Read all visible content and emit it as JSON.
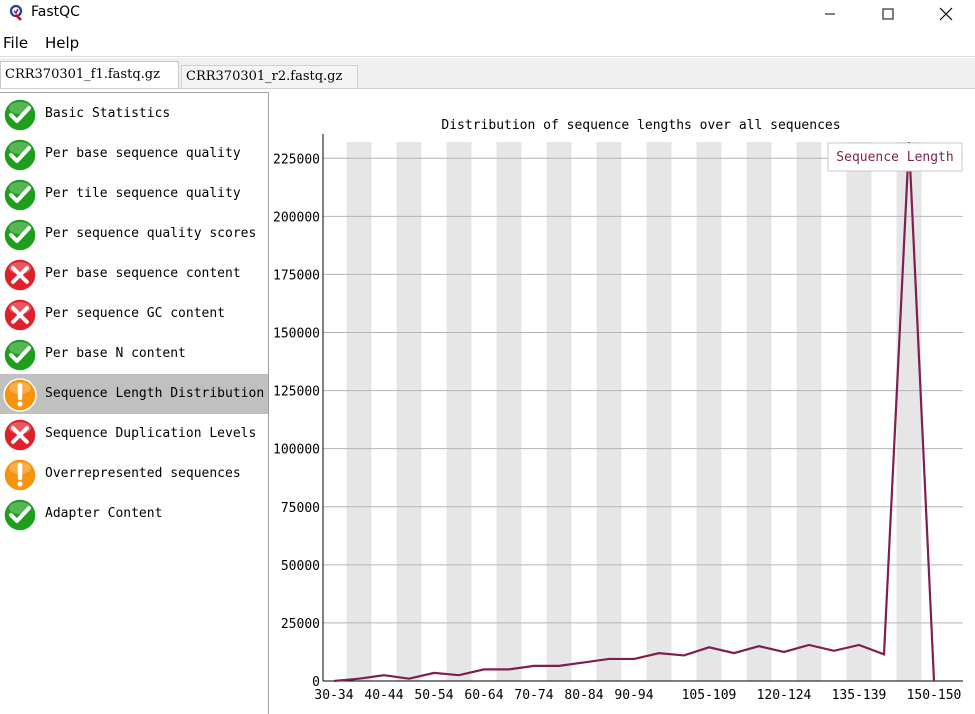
{
  "window": {
    "title": "FastQC"
  },
  "menu": {
    "file": "File",
    "help": "Help"
  },
  "tabs": [
    {
      "label": "CRR370301_f1.fastq.gz",
      "active": true
    },
    {
      "label": "CRR370301_r2.fastq.gz",
      "active": false
    }
  ],
  "modules": [
    {
      "label": "Basic Statistics",
      "status": "pass"
    },
    {
      "label": "Per base sequence quality",
      "status": "pass"
    },
    {
      "label": "Per tile sequence quality",
      "status": "pass"
    },
    {
      "label": "Per sequence quality scores",
      "status": "pass"
    },
    {
      "label": "Per base sequence content",
      "status": "fail"
    },
    {
      "label": "Per sequence GC content",
      "status": "fail"
    },
    {
      "label": "Per base N content",
      "status": "pass"
    },
    {
      "label": "Sequence Length Distribution",
      "status": "warn",
      "selected": true
    },
    {
      "label": "Sequence Duplication Levels",
      "status": "fail"
    },
    {
      "label": "Overrepresented sequences",
      "status": "warn"
    },
    {
      "label": "Adapter Content",
      "status": "pass"
    }
  ],
  "colors": {
    "pass": "#1e9e1e",
    "fail": "#e0202a",
    "warn": "#f5930f",
    "line": "#7f1f4f",
    "band": "#e6e6e6"
  },
  "chart_data": {
    "type": "line",
    "title": "Distribution of sequence lengths over all sequences",
    "xlabel": "",
    "ylabel": "",
    "ylim": [
      0,
      232000
    ],
    "yticks": [
      0,
      25000,
      50000,
      75000,
      100000,
      125000,
      150000,
      175000,
      200000,
      225000
    ],
    "x": [
      "30-34",
      "35-39",
      "40-44",
      "45-49",
      "50-54",
      "55-59",
      "60-64",
      "65-69",
      "70-74",
      "75-79",
      "80-84",
      "85-89",
      "90-94",
      "95-99",
      "100-104",
      "105-109",
      "110-114",
      "115-119",
      "120-124",
      "125-129",
      "130-134",
      "135-139",
      "140-144",
      "145-149",
      "150-150"
    ],
    "xtick_labels": [
      "30-34",
      "40-44",
      "50-54",
      "60-64",
      "70-74",
      "80-84",
      "90-94",
      "105-109",
      "120-124",
      "135-139",
      "150-150"
    ],
    "series": [
      {
        "name": "Sequence Length",
        "values": [
          0,
          1000,
          2500,
          1000,
          3500,
          2500,
          5000,
          5000,
          6500,
          6500,
          8000,
          9500,
          9500,
          12000,
          11000,
          14500,
          12000,
          15000,
          12500,
          15500,
          13000,
          15500,
          11500,
          232000,
          0
        ]
      }
    ],
    "legend_position": "top-right",
    "grid": true
  }
}
